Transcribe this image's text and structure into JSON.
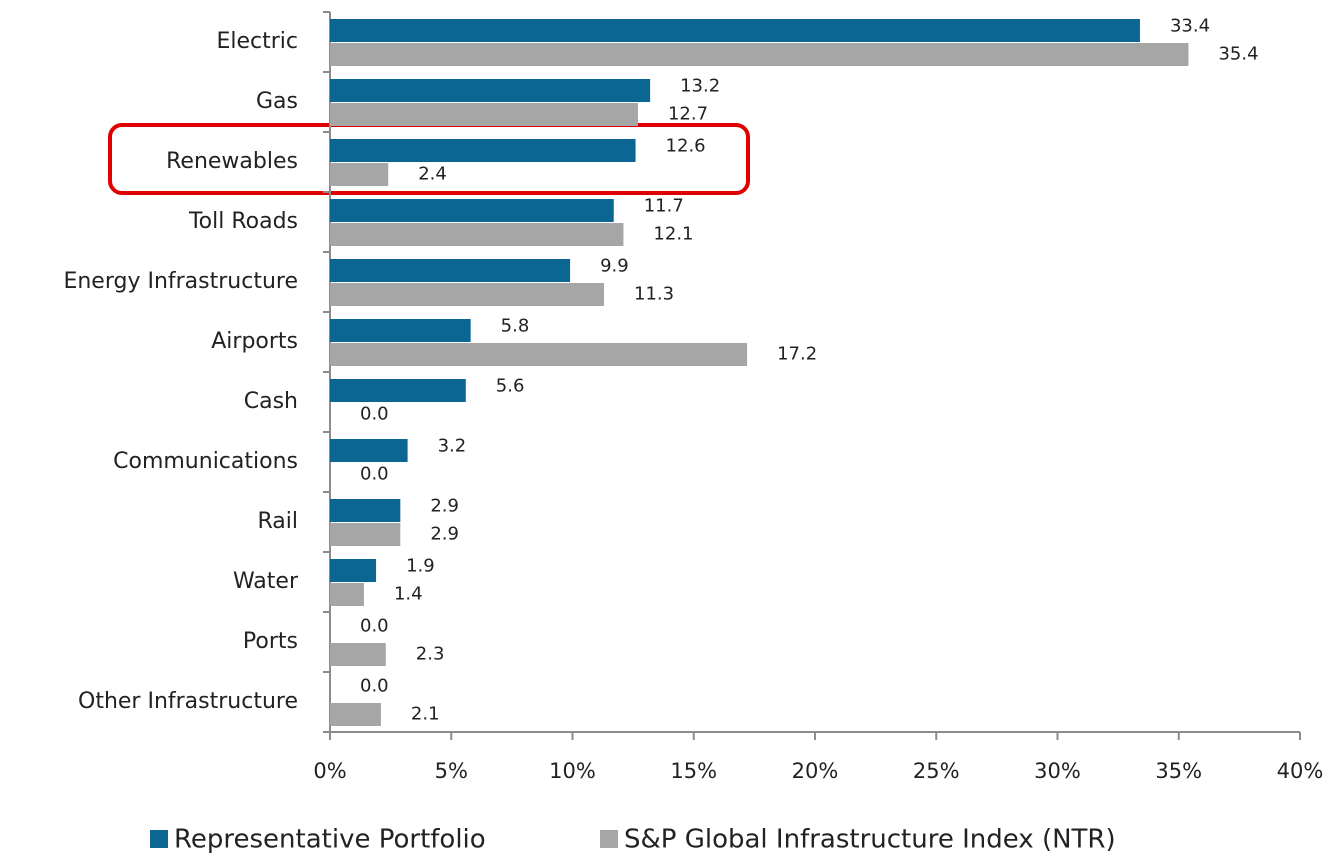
{
  "chart_data": {
    "type": "bar",
    "orientation": "horizontal",
    "categories": [
      "Electric",
      "Gas",
      "Renewables",
      "Toll Roads",
      "Energy Infrastructure",
      "Airports",
      "Cash",
      "Communications",
      "Rail",
      "Water",
      "Ports",
      "Other Infrastructure"
    ],
    "series": [
      {
        "name": "Representative Portfolio",
        "color": "#0b6694",
        "values": [
          33.4,
          13.2,
          12.6,
          11.7,
          9.9,
          5.8,
          5.6,
          3.2,
          2.9,
          1.9,
          0,
          0
        ],
        "value_labels": [
          "33.4",
          "13.2",
          "12.6",
          "11.7",
          "9.9",
          "5.8",
          "5.6",
          "3.2",
          "2.9",
          "1.9",
          "0.0",
          "0.0"
        ]
      },
      {
        "name": "S&P Global Infrastructure Index (NTR)",
        "color": "#a6a6a6",
        "values": [
          35.4,
          12.7,
          2.4,
          12.1,
          11.3,
          17.2,
          0,
          0,
          2.9,
          1.4,
          2.3,
          2.1
        ],
        "value_labels": [
          "35.4",
          "12.7",
          "2.4",
          "12.1",
          "11.3",
          "17.2",
          "0.0",
          "0.0",
          "2.9",
          "1.4",
          "2.3",
          "2.1"
        ]
      }
    ],
    "xlim": [
      0,
      40
    ],
    "xticks": [
      {
        "value": 0,
        "label": "0%"
      },
      {
        "value": 5,
        "label": "5%"
      },
      {
        "value": 10,
        "label": "10%"
      },
      {
        "value": 15,
        "label": "15%"
      },
      {
        "value": 20,
        "label": "20%"
      },
      {
        "value": 25,
        "label": "25%"
      },
      {
        "value": 30,
        "label": "30%"
      },
      {
        "value": 35,
        "label": "35%"
      },
      {
        "value": 40,
        "label": "40%"
      }
    ],
    "legend": "bottom"
  }
}
